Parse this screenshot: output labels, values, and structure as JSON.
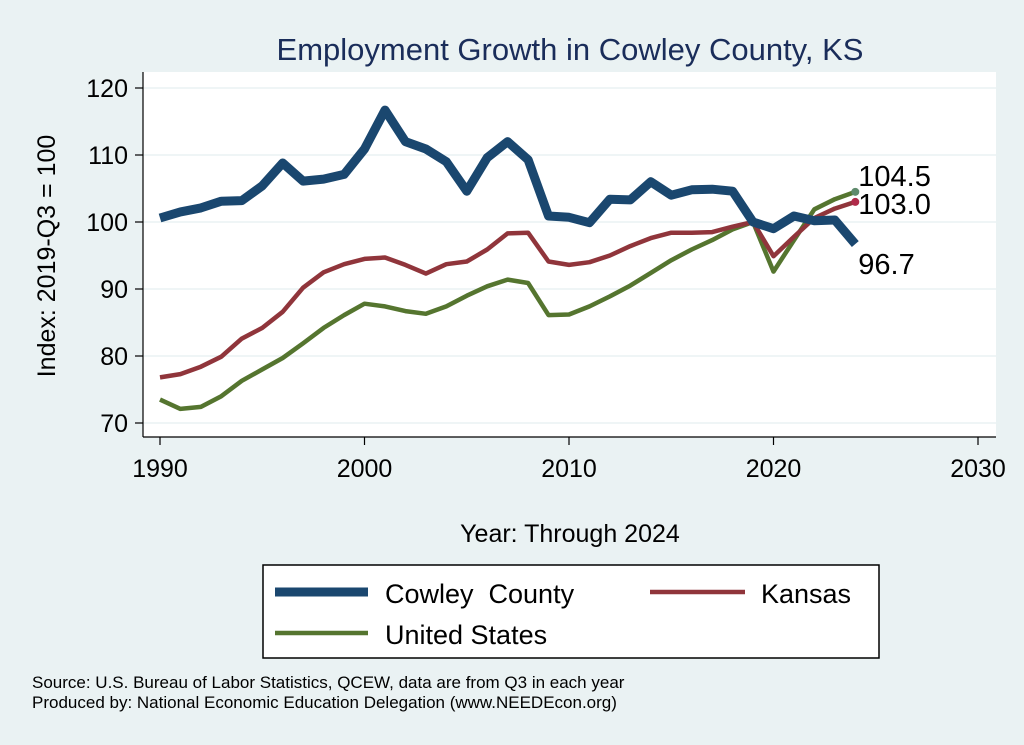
{
  "chart_data": {
    "type": "line",
    "title": "Employment Growth in Cowley County, KS",
    "xlabel": "Year: Through 2024",
    "ylabel": "Index: 2019-Q3 = 100",
    "xlim": [
      1990,
      2030
    ],
    "ylim": [
      70,
      120
    ],
    "xticks": [
      "1990",
      "2000",
      "2010",
      "2020",
      "2030"
    ],
    "yticks": [
      "70",
      "80",
      "90",
      "100",
      "110",
      "120"
    ],
    "x": [
      1990,
      1991,
      1992,
      1993,
      1994,
      1995,
      1996,
      1997,
      1998,
      1999,
      2000,
      2001,
      2002,
      2003,
      2004,
      2005,
      2006,
      2007,
      2008,
      2009,
      2010,
      2011,
      2012,
      2013,
      2014,
      2015,
      2016,
      2017,
      2018,
      2019,
      2020,
      2021,
      2022,
      2023,
      2024
    ],
    "series": [
      {
        "name": "Cowley  County",
        "color": "#1a476f",
        "values": [
          100.6,
          101.5,
          102.1,
          103.1,
          103.2,
          105.4,
          108.8,
          106.1,
          106.4,
          107.1,
          110.9,
          116.7,
          112.0,
          110.9,
          109.0,
          104.6,
          109.6,
          112.0,
          109.3,
          100.9,
          100.7,
          99.9,
          103.4,
          103.3,
          106.0,
          104.0,
          104.8,
          104.9,
          104.6,
          100.0,
          99.0,
          100.9,
          100.2,
          100.3,
          96.7
        ],
        "end_label": "96.7"
      },
      {
        "name": "Kansas",
        "color": "#90353b",
        "values": [
          76.8,
          77.3,
          78.4,
          79.9,
          82.6,
          84.2,
          86.6,
          90.2,
          92.5,
          93.7,
          94.5,
          94.7,
          93.6,
          92.3,
          93.7,
          94.1,
          95.9,
          98.3,
          98.4,
          94.1,
          93.6,
          94.0,
          95.0,
          96.4,
          97.6,
          98.4,
          98.4,
          98.5,
          99.3,
          100.0,
          94.9,
          97.8,
          100.6,
          102.0,
          103.0
        ],
        "end_label": "103.0"
      },
      {
        "name": "United States",
        "color": "#55752f",
        "values": [
          73.5,
          72.1,
          72.4,
          74.0,
          76.3,
          78.0,
          79.7,
          81.9,
          84.2,
          86.1,
          87.8,
          87.4,
          86.7,
          86.3,
          87.4,
          89.0,
          90.4,
          91.4,
          90.9,
          86.1,
          86.2,
          87.4,
          88.9,
          90.5,
          92.4,
          94.3,
          95.9,
          97.3,
          98.9,
          100.0,
          92.6,
          97.3,
          101.9,
          103.4,
          104.5
        ],
        "end_label": "104.5"
      }
    ],
    "legend": {
      "placement": "bottom",
      "order": [
        "Cowley  County",
        "Kansas",
        "United States"
      ]
    }
  },
  "source_lines": [
    "Source: U.S. Bureau of Labor Statistics, QCEW, data are from Q3 in each year",
    "Produced by: National Economic Education Delegation (www.NEEDEcon.org)"
  ]
}
